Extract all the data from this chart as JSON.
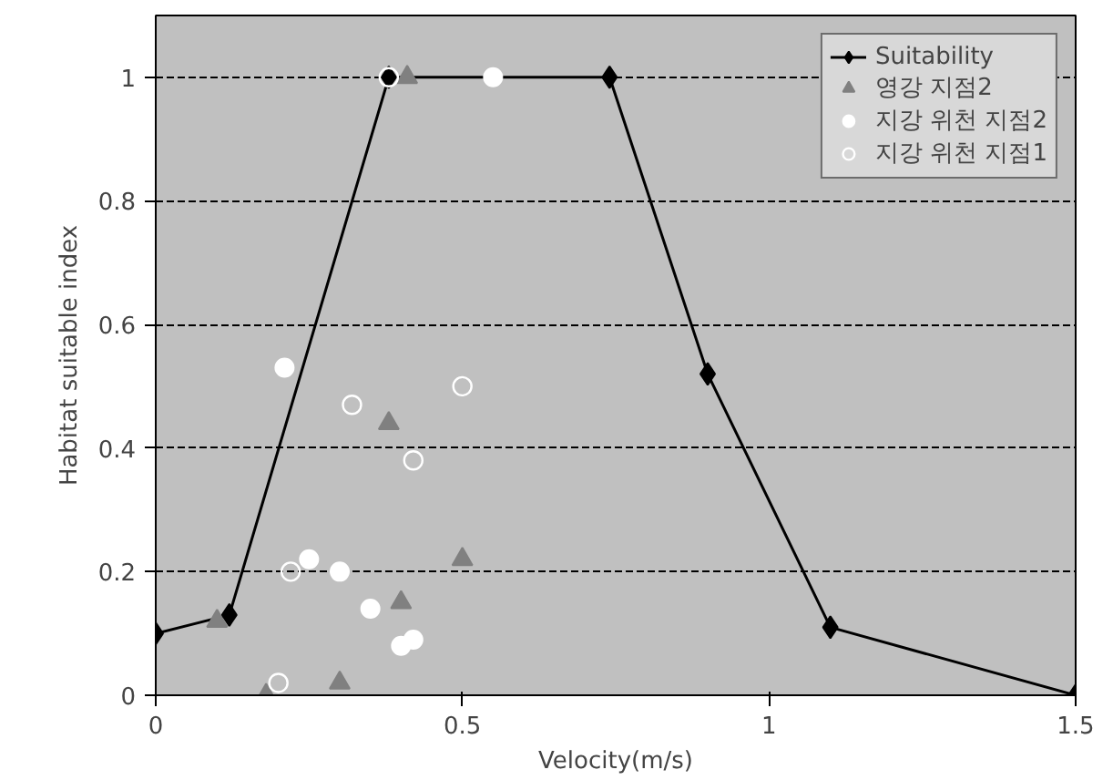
{
  "chart_data": {
    "type": "scatter",
    "xlabel": "Velocity(m/s)",
    "ylabel": "Habitat suitable index",
    "xlim": [
      0,
      1.5
    ],
    "ylim": [
      0,
      1.1
    ],
    "xticks": [
      0,
      0.5,
      1,
      1.5
    ],
    "yticks": [
      0,
      0.2,
      0.4,
      0.6,
      0.8,
      1
    ],
    "grid": "y",
    "legend": "top right",
    "series": [
      {
        "name": "Suitability",
        "type": "line",
        "marker": "diamond",
        "color": "#000000",
        "x": [
          0,
          0.12,
          0.38,
          0.74,
          0.9,
          1.1,
          1.5
        ],
        "values": [
          0.1,
          0.13,
          1,
          1,
          0.52,
          0.11,
          0
        ]
      },
      {
        "name": "영강 지점2",
        "marker": "triangle",
        "color": "#808080",
        "x": [
          0.1,
          0.41,
          0.38,
          0.5,
          0.4,
          0.3,
          0.18
        ],
        "values": [
          0.12,
          1,
          0.44,
          0.22,
          0.15,
          0.02,
          0
        ]
      },
      {
        "name": "지강 위천 지점2",
        "marker": "circle",
        "color": "#ffffff",
        "x": [
          0.55,
          0.21,
          0.25,
          0.3,
          0.35,
          0.4,
          0.42
        ],
        "values": [
          1,
          0.53,
          0.22,
          0.2,
          0.14,
          0.08,
          0.09
        ]
      },
      {
        "name": "지강 위천 지점1",
        "marker": "open circle",
        "color": "#ffffff",
        "x": [
          0.32,
          0.5,
          0.42,
          0.22,
          0.2,
          0.38
        ],
        "values": [
          0.47,
          0.5,
          0.38,
          0.2,
          0.02,
          1
        ]
      }
    ]
  }
}
